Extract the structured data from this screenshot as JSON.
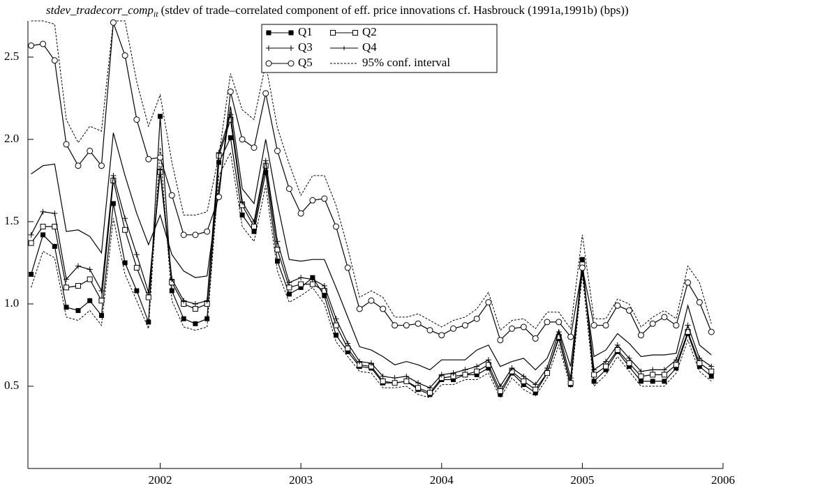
{
  "chart_data": {
    "type": "line",
    "title_var": "stdev_tradecorr_comp",
    "title_sub": "it",
    "title_desc": "(stdev of trade–correlated component of eff. price innovations cf. Hasbrouck (1991a,1991b) (bps))",
    "x": [
      2001.083,
      2001.167,
      2001.25,
      2001.333,
      2001.417,
      2001.5,
      2001.583,
      2001.667,
      2001.75,
      2001.833,
      2001.917,
      2002,
      2002.083,
      2002.167,
      2002.25,
      2002.333,
      2002.417,
      2002.5,
      2002.583,
      2002.667,
      2002.75,
      2002.833,
      2002.917,
      2003,
      2003.083,
      2003.167,
      2003.25,
      2003.333,
      2003.417,
      2003.5,
      2003.583,
      2003.667,
      2003.75,
      2003.833,
      2003.917,
      2004,
      2004.083,
      2004.167,
      2004.25,
      2004.333,
      2004.417,
      2004.5,
      2004.583,
      2004.667,
      2004.75,
      2004.833,
      2004.917,
      2005,
      2005.083,
      2005.167,
      2005.25,
      2005.333,
      2005.417,
      2005.5,
      2005.583,
      2005.667,
      2005.75,
      2005.833,
      2005.917
    ],
    "xlim": [
      2001.06,
      2006
    ],
    "xticks": [
      2002,
      2003,
      2004,
      2005,
      2006
    ],
    "ylim": [
      0,
      2.72
    ],
    "yticks": [
      0.5,
      {
        "value": 1,
        "label": "1.0"
      },
      1.5,
      {
        "value": 2,
        "label": "2.0"
      },
      2.5
    ],
    "legend": "top-center",
    "series": [
      {
        "name": "Q1",
        "color": "#000000",
        "marker": "filled-square",
        "values": [
          1.18,
          1.42,
          1.35,
          0.98,
          0.96,
          1.02,
          0.93,
          1.61,
          1.25,
          1.08,
          0.89,
          2.14,
          1.08,
          0.91,
          0.88,
          0.91,
          1.86,
          2.01,
          1.54,
          1.44,
          1.8,
          1.26,
          1.06,
          1.1,
          1.16,
          1.05,
          0.81,
          0.71,
          0.62,
          0.61,
          0.52,
          0.52,
          0.53,
          0.48,
          0.45,
          0.54,
          0.54,
          0.57,
          0.57,
          0.61,
          0.45,
          0.58,
          0.51,
          0.46,
          0.58,
          0.79,
          0.51,
          1.27,
          0.53,
          0.6,
          0.71,
          0.62,
          0.53,
          0.53,
          0.53,
          0.61,
          0.82,
          0.62,
          0.56
        ]
      },
      {
        "name": "Q2",
        "color": "#000000",
        "marker": "open-square",
        "values": [
          1.37,
          1.47,
          1.47,
          1.1,
          1.11,
          1.15,
          1.02,
          1.75,
          1.45,
          1.22,
          1.04,
          1.8,
          1.13,
          1.0,
          0.97,
          1.0,
          1.9,
          2.12,
          1.6,
          1.47,
          1.84,
          1.33,
          1.1,
          1.12,
          1.12,
          1.08,
          0.87,
          0.73,
          0.63,
          0.62,
          0.53,
          0.52,
          0.53,
          0.49,
          0.46,
          0.55,
          0.56,
          0.57,
          0.59,
          0.63,
          0.47,
          0.59,
          0.53,
          0.48,
          0.58,
          0.8,
          0.52,
          1.24,
          0.57,
          0.62,
          0.72,
          0.64,
          0.56,
          0.57,
          0.57,
          0.63,
          0.83,
          0.64,
          0.59
        ]
      },
      {
        "name": "Q3",
        "color": "#000000",
        "marker": "plus",
        "values": [
          1.42,
          1.56,
          1.55,
          1.15,
          1.23,
          1.21,
          1.08,
          1.78,
          1.52,
          1.3,
          1.07,
          1.82,
          1.15,
          1.02,
          1.0,
          1.02,
          1.92,
          2.15,
          1.62,
          1.5,
          1.87,
          1.38,
          1.13,
          1.16,
          1.15,
          1.11,
          0.91,
          0.76,
          0.65,
          0.64,
          0.56,
          0.55,
          0.56,
          0.52,
          0.49,
          0.57,
          0.58,
          0.6,
          0.62,
          0.66,
          0.5,
          0.61,
          0.56,
          0.51,
          0.61,
          0.83,
          0.55,
          1.22,
          0.6,
          0.65,
          0.75,
          0.67,
          0.59,
          0.6,
          0.6,
          0.66,
          0.87,
          0.67,
          0.62
        ]
      },
      {
        "name": "Q4",
        "color": "#000000",
        "marker": "none",
        "values": [
          1.79,
          1.84,
          1.85,
          1.44,
          1.45,
          1.41,
          1.31,
          2.04,
          1.78,
          1.55,
          1.36,
          1.54,
          1.3,
          1.2,
          1.16,
          1.17,
          1.7,
          2.2,
          1.7,
          1.61,
          2.0,
          1.61,
          1.27,
          1.26,
          1.27,
          1.27,
          1.1,
          0.92,
          0.74,
          0.72,
          0.68,
          0.63,
          0.65,
          0.63,
          0.6,
          0.66,
          0.66,
          0.66,
          0.72,
          0.75,
          0.62,
          0.65,
          0.67,
          0.6,
          0.67,
          0.84,
          0.62,
          1.2,
          0.68,
          0.72,
          0.82,
          0.76,
          0.68,
          0.69,
          0.69,
          0.7,
          0.99,
          0.75,
          0.69
        ]
      },
      {
        "name": "Q5",
        "color": "#000000",
        "marker": "open-circle",
        "values": [
          2.57,
          2.58,
          2.48,
          1.97,
          1.84,
          1.93,
          1.84,
          2.71,
          2.51,
          2.12,
          1.88,
          1.89,
          1.66,
          1.42,
          1.42,
          1.44,
          1.65,
          2.29,
          2.0,
          1.95,
          2.28,
          1.93,
          1.7,
          1.55,
          1.63,
          1.64,
          1.47,
          1.22,
          0.97,
          1.02,
          0.97,
          0.87,
          0.87,
          0.88,
          0.84,
          0.81,
          0.85,
          0.87,
          0.91,
          1.01,
          0.78,
          0.85,
          0.86,
          0.79,
          0.89,
          0.89,
          0.8,
          1.22,
          0.87,
          0.87,
          0.99,
          0.96,
          0.81,
          0.88,
          0.92,
          0.87,
          1.13,
          1.01,
          0.83
        ]
      }
    ],
    "interval": {
      "name": "95% conf. interval",
      "color": "#000000",
      "upper": [
        2.72,
        2.72,
        2.7,
        2.12,
        1.98,
        2.08,
        2.05,
        2.72,
        2.72,
        2.35,
        2.08,
        2.27,
        1.86,
        1.54,
        1.54,
        1.56,
        1.9,
        2.4,
        2.18,
        2.12,
        2.46,
        2.07,
        1.85,
        1.66,
        1.78,
        1.78,
        1.6,
        1.34,
        1.04,
        1.08,
        1.04,
        0.92,
        0.92,
        0.94,
        0.9,
        0.86,
        0.9,
        0.92,
        0.97,
        1.07,
        0.84,
        0.9,
        0.91,
        0.85,
        0.95,
        0.95,
        0.85,
        1.42,
        0.91,
        0.91,
        1.03,
        1.0,
        0.86,
        0.92,
        0.96,
        0.91,
        1.23,
        1.13,
        0.88
      ],
      "lower": [
        1.1,
        1.32,
        1.28,
        0.92,
        0.9,
        0.96,
        0.87,
        1.52,
        1.18,
        1.02,
        0.85,
        1.95,
        1.02,
        0.86,
        0.84,
        0.86,
        1.78,
        1.92,
        1.47,
        1.38,
        1.72,
        1.2,
        1.01,
        1.05,
        1.1,
        1.0,
        0.77,
        0.68,
        0.59,
        0.58,
        0.49,
        0.49,
        0.5,
        0.45,
        0.43,
        0.51,
        0.51,
        0.54,
        0.54,
        0.58,
        0.43,
        0.55,
        0.48,
        0.44,
        0.55,
        0.75,
        0.49,
        1.18,
        0.5,
        0.57,
        0.68,
        0.59,
        0.5,
        0.5,
        0.5,
        0.58,
        0.78,
        0.59,
        0.53
      ]
    }
  }
}
